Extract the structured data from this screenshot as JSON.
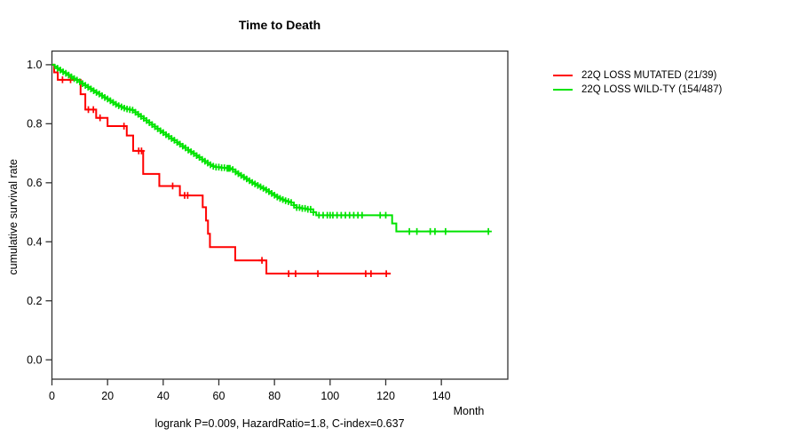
{
  "chart_data": {
    "type": "line",
    "subtype": "kaplan-meier-step-curves",
    "title": "Time to Death",
    "ylabel": "cumulative survival rate",
    "xlabel": "Month",
    "caption": "logrank P=0.009, HazardRatio=1.8, C-index=0.637",
    "xticks": [
      0,
      20,
      40,
      60,
      80,
      100,
      120,
      140
    ],
    "yticks": [
      0.0,
      0.2,
      0.4,
      0.6,
      0.8,
      1.0
    ],
    "xlim": [
      0,
      164
    ],
    "ylim": [
      0.0,
      1.0
    ],
    "grid": false,
    "legend_position": "right-outside",
    "axis_color": "#333333",
    "series": [
      {
        "name": "22Q LOSS MUTATED (21/39)",
        "color": "#FF0000",
        "end_month": 121.8,
        "points": [
          [
            0,
            1.0
          ],
          [
            0.8,
            0.974
          ],
          [
            2.1,
            0.949
          ],
          [
            10.3,
            0.9
          ],
          [
            12.0,
            0.848
          ],
          [
            15.9,
            0.82
          ],
          [
            20.0,
            0.792
          ],
          [
            26.9,
            0.76
          ],
          [
            29.2,
            0.708
          ],
          [
            32.8,
            0.63
          ],
          [
            38.6,
            0.589
          ],
          [
            46.0,
            0.557
          ],
          [
            54.2,
            0.517
          ],
          [
            55.4,
            0.472
          ],
          [
            56.1,
            0.427
          ],
          [
            56.8,
            0.382
          ],
          [
            65.9,
            0.337
          ],
          [
            77.1,
            0.292
          ]
        ],
        "censor_months": [
          3.8,
          6.7,
          13.1,
          14.9,
          17.3,
          25.9,
          31.2,
          32.2,
          43.4,
          47.7,
          48.8,
          75.5,
          85.1,
          87.6,
          95.6,
          112.8,
          114.7,
          120.2
        ]
      },
      {
        "name": "22Q LOSS WILD-TY (154/487)",
        "color": "#00E300",
        "end_month": 157.4,
        "points": [
          [
            0,
            1.0
          ],
          [
            1,
            0.994
          ],
          [
            2,
            0.988
          ],
          [
            3,
            0.982
          ],
          [
            4,
            0.976
          ],
          [
            5,
            0.971
          ],
          [
            6,
            0.965
          ],
          [
            7,
            0.959
          ],
          [
            8,
            0.953
          ],
          [
            9,
            0.948
          ],
          [
            10,
            0.942
          ],
          [
            11,
            0.936
          ],
          [
            12,
            0.93
          ],
          [
            13,
            0.924
          ],
          [
            14,
            0.918
          ],
          [
            15,
            0.912
          ],
          [
            16,
            0.906
          ],
          [
            17,
            0.901
          ],
          [
            18,
            0.895
          ],
          [
            19,
            0.889
          ],
          [
            20,
            0.884
          ],
          [
            21,
            0.878
          ],
          [
            22,
            0.872
          ],
          [
            23,
            0.866
          ],
          [
            24,
            0.861
          ],
          [
            25,
            0.857
          ],
          [
            26,
            0.853
          ],
          [
            27,
            0.85
          ],
          [
            28,
            0.848
          ],
          [
            29,
            0.846
          ],
          [
            30,
            0.839
          ],
          [
            31,
            0.832
          ],
          [
            32,
            0.825
          ],
          [
            33,
            0.818
          ],
          [
            34,
            0.811
          ],
          [
            35,
            0.804
          ],
          [
            36,
            0.797
          ],
          [
            37,
            0.79
          ],
          [
            38,
            0.783
          ],
          [
            39,
            0.776
          ],
          [
            40,
            0.77
          ],
          [
            41,
            0.763
          ],
          [
            42,
            0.757
          ],
          [
            43,
            0.75
          ],
          [
            44,
            0.744
          ],
          [
            45,
            0.737
          ],
          [
            46,
            0.731
          ],
          [
            47,
            0.724
          ],
          [
            48,
            0.718
          ],
          [
            49,
            0.711
          ],
          [
            50,
            0.705
          ],
          [
            51,
            0.699
          ],
          [
            52,
            0.692
          ],
          [
            53,
            0.686
          ],
          [
            54,
            0.679
          ],
          [
            55,
            0.673
          ],
          [
            56,
            0.667
          ],
          [
            57,
            0.661
          ],
          [
            58,
            0.656
          ],
          [
            59,
            0.653
          ],
          [
            61,
            0.651
          ],
          [
            63,
            0.649
          ],
          [
            65,
            0.645
          ],
          [
            66,
            0.637
          ],
          [
            67,
            0.631
          ],
          [
            68,
            0.625
          ],
          [
            69,
            0.619
          ],
          [
            70,
            0.613
          ],
          [
            71,
            0.607
          ],
          [
            72,
            0.601
          ],
          [
            73,
            0.596
          ],
          [
            74,
            0.591
          ],
          [
            75,
            0.586
          ],
          [
            76,
            0.581
          ],
          [
            77,
            0.576
          ],
          [
            78,
            0.57
          ],
          [
            79,
            0.564
          ],
          [
            80,
            0.558
          ],
          [
            81,
            0.552
          ],
          [
            82,
            0.547
          ],
          [
            83,
            0.543
          ],
          [
            84,
            0.539
          ],
          [
            85,
            0.536
          ],
          [
            86,
            0.533
          ],
          [
            87,
            0.524
          ],
          [
            88,
            0.516
          ],
          [
            90,
            0.513
          ],
          [
            92,
            0.51
          ],
          [
            94,
            0.5
          ],
          [
            95,
            0.49
          ],
          [
            122.3,
            0.462
          ],
          [
            123.8,
            0.435
          ]
        ],
        "censor_months": [
          2,
          3,
          4,
          5,
          6,
          7,
          8,
          9,
          10,
          11,
          12,
          13,
          14,
          15,
          16,
          17,
          18,
          19,
          20,
          21,
          22,
          23,
          24,
          25,
          26,
          27,
          28,
          29,
          30,
          31,
          32,
          33,
          34,
          35,
          36,
          37,
          38,
          39,
          40,
          41,
          42,
          43,
          44,
          45,
          46,
          47,
          48,
          49,
          50,
          51,
          52,
          53,
          54,
          55,
          56,
          57,
          58,
          59,
          60,
          61,
          62,
          63,
          63.5,
          64,
          65,
          66,
          67,
          68,
          69,
          70,
          71,
          72,
          73,
          74,
          75,
          76,
          77,
          78,
          79,
          80,
          81,
          82,
          83,
          84,
          85,
          86,
          87,
          88,
          89,
          90,
          91,
          92,
          93,
          94,
          96,
          97.5,
          99,
          100,
          101,
          102.5,
          104,
          105.5,
          107,
          108.5,
          110,
          111.5,
          118,
          120,
          128.5,
          131.2,
          136,
          137.7,
          141.5,
          156.9
        ]
      }
    ]
  }
}
